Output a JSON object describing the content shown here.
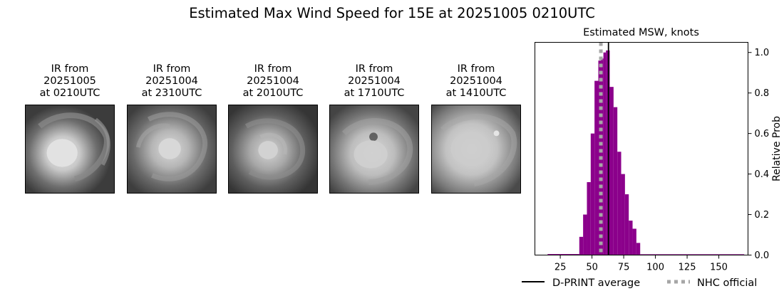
{
  "suptitle": "Estimated Max Wind Speed for 15E at 20251005 0210UTC",
  "ir_panels": [
    {
      "line1": "IR from",
      "line2": "20251005",
      "line3": "at 0210UTC"
    },
    {
      "line1": "IR from",
      "line2": "20251004",
      "line3": "at 2310UTC"
    },
    {
      "line1": "IR from",
      "line2": "20251004",
      "line3": "at 2010UTC"
    },
    {
      "line1": "IR from",
      "line2": "20251004",
      "line3": "at 1710UTC"
    },
    {
      "line1": "IR from",
      "line2": "20251004",
      "line3": "at 1410UTC"
    }
  ],
  "chart_data": {
    "type": "bar",
    "title": "Estimated MSW, knots",
    "xlabel": "",
    "ylabel": "Relative Prob",
    "xlim": [
      5,
      173
    ],
    "ylim": [
      0,
      1.05
    ],
    "xticks": [
      25,
      50,
      75,
      100,
      125,
      150
    ],
    "yticks": [
      0.0,
      0.2,
      0.4,
      0.6,
      0.8,
      1.0
    ],
    "y_axis_side": "right",
    "bar_color": "#8b008b",
    "bins": [
      {
        "x0": 15,
        "x1": 40,
        "y": 0.005
      },
      {
        "x0": 40,
        "x1": 43,
        "y": 0.09
      },
      {
        "x0": 43,
        "x1": 46,
        "y": 0.2
      },
      {
        "x0": 46,
        "x1": 49,
        "y": 0.36
      },
      {
        "x0": 49,
        "x1": 52,
        "y": 0.6
      },
      {
        "x0": 52,
        "x1": 55,
        "y": 0.86
      },
      {
        "x0": 55,
        "x1": 57,
        "y": 0.96
      },
      {
        "x0": 57,
        "x1": 59,
        "y": 0.97
      },
      {
        "x0": 59,
        "x1": 61,
        "y": 1.0
      },
      {
        "x0": 61,
        "x1": 64,
        "y": 1.01
      },
      {
        "x0": 64,
        "x1": 67,
        "y": 0.83
      },
      {
        "x0": 67,
        "x1": 70,
        "y": 0.73
      },
      {
        "x0": 70,
        "x1": 73,
        "y": 0.51
      },
      {
        "x0": 73,
        "x1": 76,
        "y": 0.4
      },
      {
        "x0": 76,
        "x1": 79,
        "y": 0.3
      },
      {
        "x0": 79,
        "x1": 82,
        "y": 0.17
      },
      {
        "x0": 82,
        "x1": 85,
        "y": 0.13
      },
      {
        "x0": 85,
        "x1": 88,
        "y": 0.06
      },
      {
        "x0": 88,
        "x1": 170,
        "y": 0.004
      }
    ],
    "dprint_average": 63,
    "nhc_official": 57,
    "legend": [
      {
        "label": "D-PRINT average",
        "style": "solid",
        "color": "#000000"
      },
      {
        "label": "NHC official",
        "style": "dotted",
        "color": "#a6a6a6"
      }
    ],
    "legend_placement": "bottom"
  }
}
